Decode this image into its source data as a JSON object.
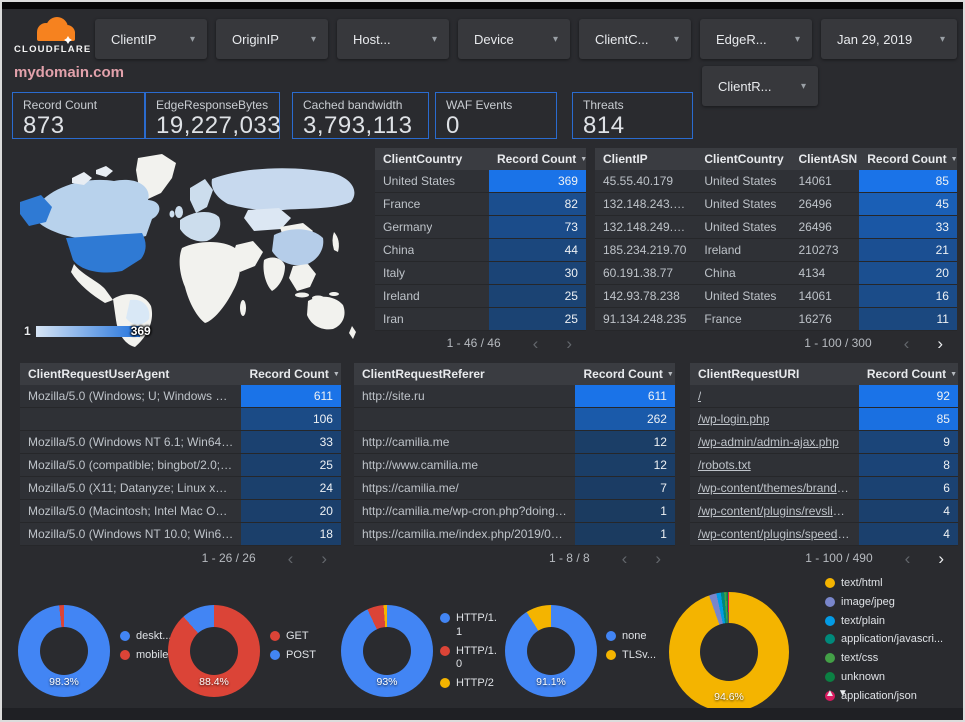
{
  "header": {
    "brand": "CLOUDFLARE",
    "filters": [
      "ClientIP",
      "OriginIP",
      "Host...",
      "Device",
      "ClientC...",
      "EdgeR..."
    ],
    "date_filter": "Jan 29, 2019",
    "filter_row2": "ClientR..."
  },
  "title": "mydomain.com",
  "scorecards": [
    {
      "label": "Record Count",
      "value": "873"
    },
    {
      "label": "EdgeResponseBytes",
      "value": "19,227,033"
    },
    {
      "label": "Cached bandwidth",
      "value": "3,793,113"
    },
    {
      "label": "WAF Events",
      "value": "0"
    },
    {
      "label": "Threats",
      "value": "814"
    }
  ],
  "map": {
    "scale_min": "1",
    "scale_max": "369"
  },
  "colors": {
    "accent": "#1a73e8",
    "heat_low": "#1b3a5e",
    "heat_high": "#1a73e8"
  },
  "tables": {
    "country": {
      "headers": [
        "ClientCountry",
        "Record Count"
      ],
      "rows": [
        {
          "cells": [
            "United States"
          ],
          "value": 369
        },
        {
          "cells": [
            "France"
          ],
          "value": 82
        },
        {
          "cells": [
            "Germany"
          ],
          "value": 73
        },
        {
          "cells": [
            "China"
          ],
          "value": 44
        },
        {
          "cells": [
            "Italy"
          ],
          "value": 30
        },
        {
          "cells": [
            "Ireland"
          ],
          "value": 25
        },
        {
          "cells": [
            "Iran"
          ],
          "value": 25
        }
      ],
      "max": 369,
      "pagination": "1 - 46 / 46",
      "prev_active": false,
      "next_active": false
    },
    "client_ip": {
      "headers": [
        "ClientIP",
        "ClientCountry",
        "ClientASN",
        "Record Count"
      ],
      "rows": [
        {
          "cells": [
            "45.55.40.179",
            "United States",
            "14061"
          ],
          "value": 85
        },
        {
          "cells": [
            "132.148.243.238",
            "United States",
            "26496"
          ],
          "value": 45
        },
        {
          "cells": [
            "132.148.249.210",
            "United States",
            "26496"
          ],
          "value": 33
        },
        {
          "cells": [
            "185.234.219.70",
            "Ireland",
            "210273"
          ],
          "value": 21
        },
        {
          "cells": [
            "60.191.38.77",
            "China",
            "4134"
          ],
          "value": 20
        },
        {
          "cells": [
            "142.93.78.238",
            "United States",
            "14061"
          ],
          "value": 16
        },
        {
          "cells": [
            "91.134.248.235",
            "France",
            "16276"
          ],
          "value": 11
        }
      ],
      "max": 85,
      "pagination": "1 - 100 / 300",
      "prev_active": false,
      "next_active": true
    },
    "user_agent": {
      "headers": [
        "ClientRequestUserAgent",
        "Record Count"
      ],
      "rows": [
        {
          "cells": [
            "Mozilla/5.0 (Windows; U; Windows NT 5.1; en-U..."
          ],
          "value": 611
        },
        {
          "cells": [
            ""
          ],
          "value": 106
        },
        {
          "cells": [
            "Mozilla/5.0 (Windows NT 6.1; Win64; x64; rv:64..."
          ],
          "value": 33
        },
        {
          "cells": [
            "Mozilla/5.0 (compatible; bingbot/2.0; +http://w..."
          ],
          "value": 25
        },
        {
          "cells": [
            "Mozilla/5.0 (X11; Datanyze; Linux x86_64) Appl..."
          ],
          "value": 24
        },
        {
          "cells": [
            "Mozilla/5.0 (Macintosh; Intel Mac OS X 10.11; r..."
          ],
          "value": 20
        },
        {
          "cells": [
            "Mozilla/5.0 (Windows NT 10.0; Win64; x64) App..."
          ],
          "value": 18
        }
      ],
      "max": 611,
      "pagination": "1 - 26 / 26",
      "prev_active": false,
      "next_active": false
    },
    "referer": {
      "headers": [
        "ClientRequestReferer",
        "Record Count"
      ],
      "rows": [
        {
          "cells": [
            "http://site.ru"
          ],
          "value": 611
        },
        {
          "cells": [
            ""
          ],
          "value": 262
        },
        {
          "cells": [
            "http://camilia.me"
          ],
          "value": 12
        },
        {
          "cells": [
            "http://www.camilia.me"
          ],
          "value": 12
        },
        {
          "cells": [
            "https://camilia.me/"
          ],
          "value": 7
        },
        {
          "cells": [
            "http://camilia.me/wp-cron.php?doing_wp_cron..."
          ],
          "value": 1
        },
        {
          "cells": [
            "https://camilia.me/index.php/2019/01/26/stor..."
          ],
          "value": 1
        }
      ],
      "max": 611,
      "pagination": "1 - 8 / 8",
      "prev_active": false,
      "next_active": false
    },
    "uri": {
      "headers": [
        "ClientRequestURI",
        "Record Count"
      ],
      "rows": [
        {
          "cells": [
            "/"
          ],
          "value": 92
        },
        {
          "cells": [
            "/wp-login.php"
          ],
          "value": 85
        },
        {
          "cells": [
            "/wp-admin/admin-ajax.php"
          ],
          "value": 9
        },
        {
          "cells": [
            "/robots.txt"
          ],
          "value": 8
        },
        {
          "cells": [
            "/wp-content/themes/brandon/plu..."
          ],
          "value": 6
        },
        {
          "cells": [
            "/wp-content/plugins/revslider/rs-p..."
          ],
          "value": 4
        },
        {
          "cells": [
            "/wp-content/plugins/speed-booste..."
          ],
          "value": 4
        }
      ],
      "max": 92,
      "pagination": "1 - 100 / 490",
      "prev_active": false,
      "next_active": true,
      "links": true
    }
  },
  "chart_data": [
    {
      "type": "pie",
      "name": "device-type-donut",
      "label": "98.3%",
      "slices": [
        {
          "label": "deskt...",
          "value": 98.3,
          "color": "#4285f4"
        },
        {
          "label": "mobile",
          "value": 1.7,
          "color": "#db4437"
        }
      ]
    },
    {
      "type": "pie",
      "name": "http-method-donut",
      "label": "88.4%",
      "slices": [
        {
          "label": "GET",
          "value": 88.4,
          "color": "#db4437"
        },
        {
          "label": "POST",
          "value": 11.6,
          "color": "#4285f4"
        }
      ]
    },
    {
      "type": "pie",
      "name": "http-version-donut",
      "label": "93%",
      "slices": [
        {
          "label": "HTTP/1.1",
          "value": 93,
          "color": "#4285f4"
        },
        {
          "label": "HTTP/1.0",
          "value": 5.8,
          "color": "#db4437"
        },
        {
          "label": "HTTP/2",
          "value": 1.2,
          "color": "#f4b400"
        }
      ]
    },
    {
      "type": "pie",
      "name": "tls-version-donut",
      "label": "91.1%",
      "slices": [
        {
          "label": "none",
          "value": 91.1,
          "color": "#4285f4"
        },
        {
          "label": "TLSv...",
          "value": 8.9,
          "color": "#f4b400"
        }
      ]
    },
    {
      "type": "pie",
      "name": "content-type-donut",
      "label": "94.6%",
      "has_legend_arrows": true,
      "slices": [
        {
          "label": "text/html",
          "value": 94.6,
          "color": "#f4b400"
        },
        {
          "label": "image/jpeg",
          "value": 2.0,
          "color": "#7986cb"
        },
        {
          "label": "text/plain",
          "value": 1.2,
          "color": "#039be5"
        },
        {
          "label": "application/javascri...",
          "value": 0.9,
          "color": "#00897b"
        },
        {
          "label": "text/css",
          "value": 0.6,
          "color": "#43a047"
        },
        {
          "label": "unknown",
          "value": 0.4,
          "color": "#0b8043"
        },
        {
          "label": "application/json",
          "value": 0.3,
          "color": "#d81b60"
        }
      ]
    }
  ]
}
